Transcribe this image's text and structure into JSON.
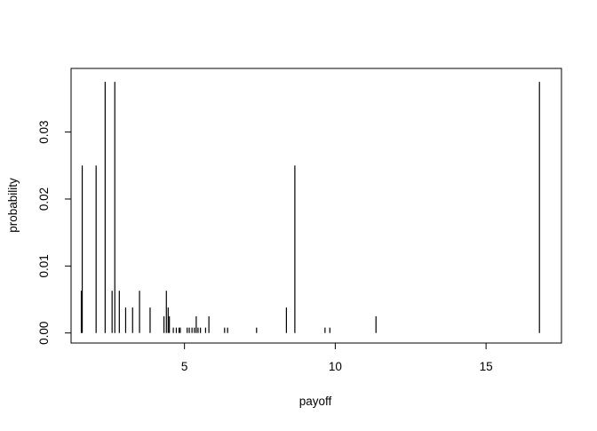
{
  "chart_data": {
    "type": "bar",
    "style": "spike",
    "xlabel": "payoff",
    "ylabel": "probability",
    "xlim": [
      1.24,
      17.5
    ],
    "ylim": [
      -0.0015,
      0.0395
    ],
    "xticks": [
      5,
      10,
      15
    ],
    "yticks": [
      0.0,
      0.01,
      0.02,
      0.03
    ],
    "ytick_labels": [
      "0.00",
      "0.01",
      "0.02",
      "0.03"
    ],
    "grid": false,
    "legend": "none",
    "box": true,
    "color": "#000000",
    "points": [
      {
        "x": 1.58,
        "y": 0.0063
      },
      {
        "x": 1.61,
        "y": 0.025
      },
      {
        "x": 2.07,
        "y": 0.025
      },
      {
        "x": 2.37,
        "y": 0.0375
      },
      {
        "x": 2.6,
        "y": 0.0063
      },
      {
        "x": 2.69,
        "y": 0.0375
      },
      {
        "x": 2.84,
        "y": 0.0063
      },
      {
        "x": 3.05,
        "y": 0.0038
      },
      {
        "x": 3.28,
        "y": 0.0038
      },
      {
        "x": 3.51,
        "y": 0.0063
      },
      {
        "x": 3.86,
        "y": 0.0038
      },
      {
        "x": 4.32,
        "y": 0.0025
      },
      {
        "x": 4.4,
        "y": 0.0063
      },
      {
        "x": 4.46,
        "y": 0.0038
      },
      {
        "x": 4.5,
        "y": 0.0025
      },
      {
        "x": 4.63,
        "y": 0.0008
      },
      {
        "x": 4.73,
        "y": 0.0008
      },
      {
        "x": 4.82,
        "y": 0.0008
      },
      {
        "x": 4.86,
        "y": 0.0008
      },
      {
        "x": 5.09,
        "y": 0.0008
      },
      {
        "x": 5.16,
        "y": 0.0008
      },
      {
        "x": 5.25,
        "y": 0.0008
      },
      {
        "x": 5.33,
        "y": 0.0008
      },
      {
        "x": 5.39,
        "y": 0.0025
      },
      {
        "x": 5.45,
        "y": 0.0008
      },
      {
        "x": 5.53,
        "y": 0.0008
      },
      {
        "x": 5.7,
        "y": 0.0008
      },
      {
        "x": 5.81,
        "y": 0.0025
      },
      {
        "x": 6.33,
        "y": 0.0008
      },
      {
        "x": 6.43,
        "y": 0.0008
      },
      {
        "x": 7.39,
        "y": 0.0008
      },
      {
        "x": 8.38,
        "y": 0.0038
      },
      {
        "x": 8.66,
        "y": 0.025
      },
      {
        "x": 9.66,
        "y": 0.0008
      },
      {
        "x": 9.82,
        "y": 0.0008
      },
      {
        "x": 11.35,
        "y": 0.0025
      },
      {
        "x": 16.77,
        "y": 0.0375
      }
    ]
  }
}
